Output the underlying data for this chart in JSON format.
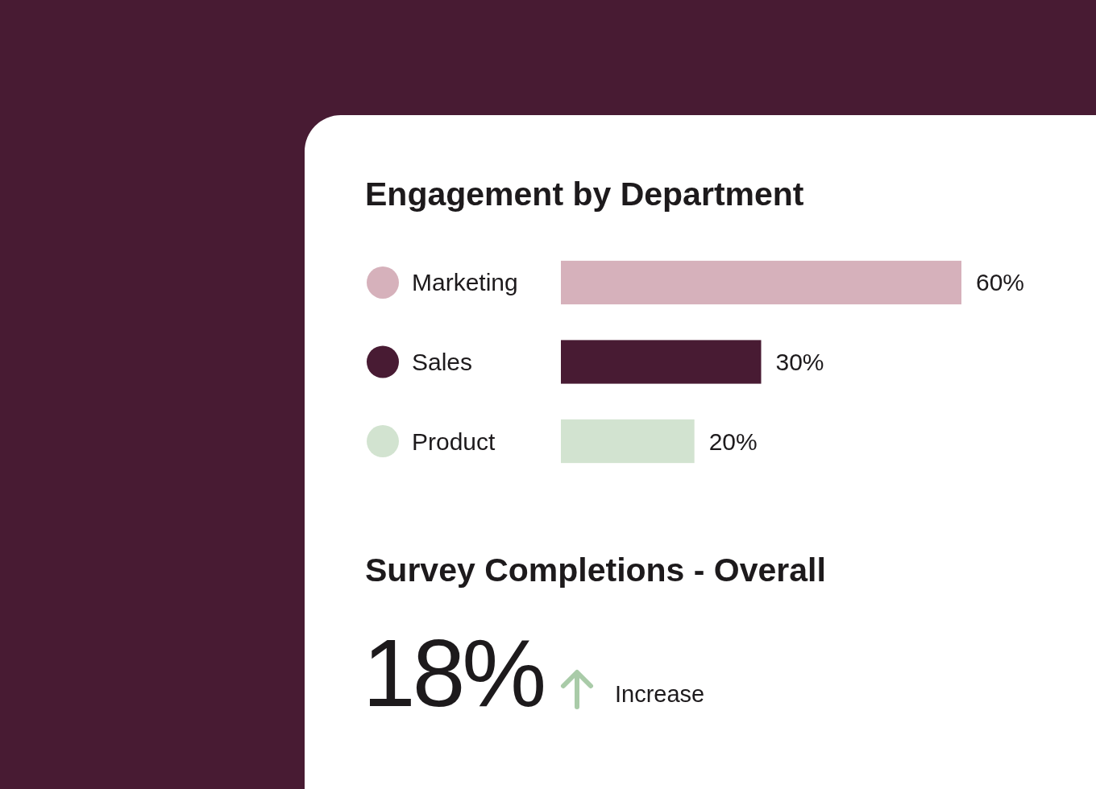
{
  "chart_data": [
    {
      "type": "bar",
      "title": "Engagement by Department",
      "orientation": "horizontal",
      "categories": [
        "Marketing",
        "Sales",
        "Product"
      ],
      "values": [
        60,
        30,
        20
      ],
      "colors": [
        "#d6b1bb",
        "#481b33",
        "#d2e3d0"
      ],
      "value_labels": [
        "60%",
        "30%",
        "20%"
      ]
    },
    {
      "type": "other",
      "title": "Survey Completions - Overall",
      "annotations": [
        "18%",
        "Increase"
      ]
    }
  ]
}
